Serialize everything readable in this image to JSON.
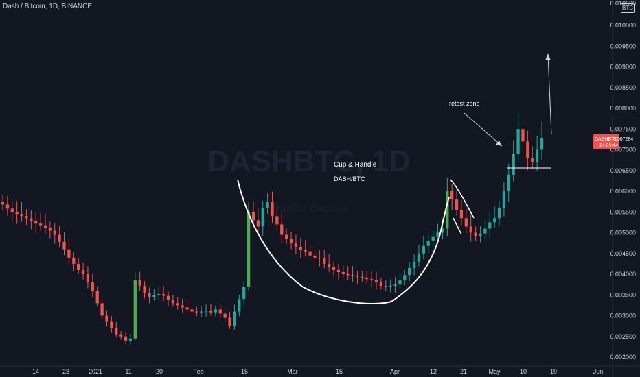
{
  "header": {
    "title": "Dash / Bitcoin, 1D, BINANCE",
    "currency_badge": "BTC"
  },
  "watermark": {
    "symbol": "DASHBTC, 1D",
    "name": "Dash / Bitcoin"
  },
  "annotations": {
    "pattern_title": "Cup & Handle",
    "pattern_pair": "DASH/BTC",
    "retest_label": "retest zone"
  },
  "price_label": {
    "symbol": "DASHBTC",
    "value": "0.007284",
    "countdown": "14:29:44",
    "color": "#ef5350"
  },
  "colors": {
    "background": "#131722",
    "up": "#26a69a",
    "up_bright": "#4caf50",
    "down": "#ef5350",
    "annotation": "#ffffff"
  },
  "chart_data": {
    "type": "candlestick",
    "title": "Dash / Bitcoin, 1D, BINANCE",
    "ylim": [
      0.0019,
      0.0109
    ],
    "y_ticks": [
      "0.002000",
      "0.002500",
      "0.003000",
      "0.003500",
      "0.004000",
      "0.004500",
      "0.005000",
      "0.005500",
      "0.006000",
      "0.006500",
      "0.007000",
      "0.007500",
      "0.008000",
      "0.008500",
      "0.009000",
      "0.009500",
      "0.010000"
    ],
    "y_top_partial": "0.010500",
    "x_ticks": [
      "14",
      "23",
      "2021",
      "11",
      "20",
      "Feb",
      "15",
      "Mar",
      "15",
      "Apr",
      "12",
      "21",
      "May",
      "10",
      "19",
      "Jun"
    ],
    "closes": [
      0.00568,
      0.00558,
      0.0055,
      0.00545,
      0.0054,
      0.00535,
      0.00528,
      0.00522,
      0.00518,
      0.00512,
      0.00505,
      0.00495,
      0.00478,
      0.0046,
      0.0044,
      0.00425,
      0.0041,
      0.004,
      0.0038,
      0.0036,
      0.0033,
      0.003,
      0.00285,
      0.0027,
      0.00255,
      0.0025,
      0.0024,
      0.00245,
      0.00385,
      0.00372,
      0.00355,
      0.00345,
      0.0035,
      0.00352,
      0.00348,
      0.00338,
      0.0033,
      0.00325,
      0.0032,
      0.00315,
      0.0031,
      0.00308,
      0.0031,
      0.00312,
      0.00308,
      0.00315,
      0.00305,
      0.00295,
      0.00275,
      0.0031,
      0.0034,
      0.0037,
      0.0055,
      0.0053,
      0.00515,
      0.0056,
      0.00575,
      0.0054,
      0.0052,
      0.00495,
      0.00485,
      0.00475,
      0.00465,
      0.00458,
      0.00455,
      0.00445,
      0.0044,
      0.00438,
      0.00425,
      0.00418,
      0.0041,
      0.00405,
      0.004,
      0.00398,
      0.00396,
      0.00394,
      0.00392,
      0.00388,
      0.00385,
      0.0038,
      0.00372,
      0.0037,
      0.00372,
      0.00375,
      0.00385,
      0.00398,
      0.00415,
      0.0043,
      0.0045,
      0.00468,
      0.0048,
      0.0049,
      0.005,
      0.0051,
      0.006,
      0.0058,
      0.00555,
      0.00535,
      0.00515,
      0.005,
      0.00492,
      0.00498,
      0.0051,
      0.00525,
      0.00535,
      0.0056,
      0.006,
      0.0064,
      0.0069,
      0.0075,
      0.0072,
      0.0068,
      0.0067,
      0.007,
      0.00728
    ]
  }
}
